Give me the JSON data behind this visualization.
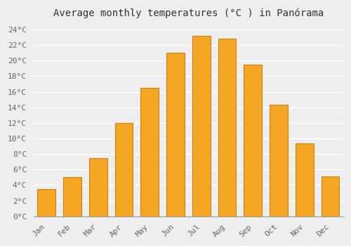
{
  "months": [
    "Jan",
    "Feb",
    "Mar",
    "Apr",
    "May",
    "Jun",
    "Jul",
    "Aug",
    "Sep",
    "Oct",
    "Nov",
    "Dec"
  ],
  "temperatures": [
    3.5,
    5.0,
    7.5,
    12.0,
    16.5,
    21.0,
    23.2,
    22.8,
    19.5,
    14.3,
    9.4,
    5.1
  ],
  "bar_color": "#F5A623",
  "bar_edge_color": "#C8841A",
  "title": "Average monthly temperatures (°C ) in Panórama",
  "ylim": [
    0,
    25
  ],
  "yticks": [
    0,
    2,
    4,
    6,
    8,
    10,
    12,
    14,
    16,
    18,
    20,
    22,
    24
  ],
  "background_color": "#eeeeee",
  "plot_bg_color": "#eeeeee",
  "grid_color": "#ffffff",
  "font_family": "monospace",
  "title_fontsize": 10,
  "tick_fontsize": 8,
  "label_color": "#666666",
  "figsize": [
    5.0,
    3.5
  ],
  "dpi": 100
}
